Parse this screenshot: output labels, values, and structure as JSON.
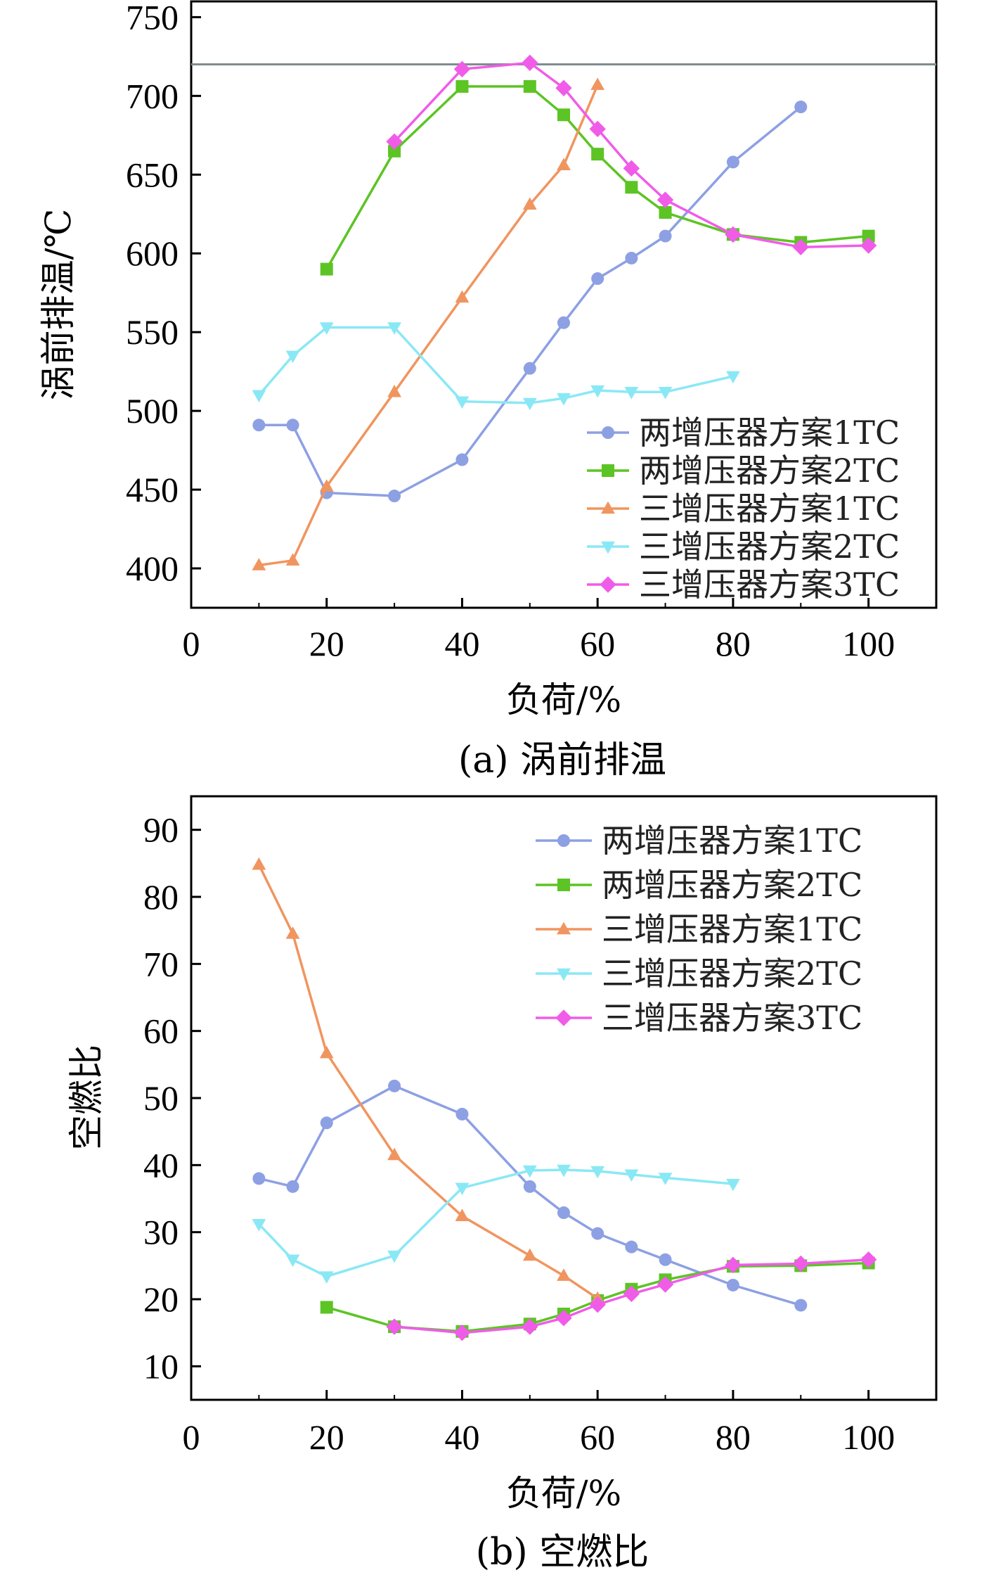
{
  "chart_data": [
    {
      "type": "line",
      "caption": "(a) 涡前排温",
      "title": "",
      "xlabel": "负荷/%",
      "ylabel": "涡前排温/℃",
      "xlim": [
        0,
        110
      ],
      "ylim": [
        375,
        760
      ],
      "xticks": [
        0,
        20,
        40,
        60,
        80,
        100
      ],
      "yticks": [
        400,
        450,
        500,
        550,
        600,
        650,
        700,
        750
      ],
      "reference_line": {
        "y": 720,
        "color": "#7f8c8d"
      },
      "legend_position": "bottom-right",
      "series": [
        {
          "name": "两增压器方案1TC",
          "marker": "circle",
          "color": "#8da0e3",
          "x": [
            10,
            15,
            20,
            30,
            40,
            50,
            55,
            60,
            65,
            70,
            80,
            90
          ],
          "y": [
            491,
            491,
            448,
            446,
            469,
            527,
            556,
            584,
            597,
            611,
            658,
            693
          ]
        },
        {
          "name": "两增压器方案2TC",
          "marker": "square",
          "color": "#5cc424",
          "x": [
            20,
            30,
            40,
            50,
            55,
            60,
            65,
            70,
            80,
            90,
            100
          ],
          "y": [
            590,
            665,
            706,
            706,
            688,
            663,
            642,
            626,
            612,
            607,
            611
          ]
        },
        {
          "name": "三增压器方案1TC",
          "marker": "triangle-up",
          "color": "#f0955f",
          "x": [
            10,
            15,
            20,
            30,
            40,
            50,
            55,
            60
          ],
          "y": [
            402,
            405,
            452,
            512,
            572,
            631,
            656,
            707
          ]
        },
        {
          "name": "三增压器方案2TC",
          "marker": "triangle-down",
          "color": "#8ae8f5",
          "x": [
            10,
            15,
            20,
            30,
            40,
            50,
            55,
            60,
            65,
            70,
            80
          ],
          "y": [
            510,
            535,
            553,
            553,
            506,
            505,
            508,
            513,
            512,
            512,
            522
          ]
        },
        {
          "name": "三增压器方案3TC",
          "marker": "diamond",
          "color": "#f05ce8",
          "x": [
            30,
            40,
            50,
            55,
            60,
            65,
            70,
            80,
            90,
            100
          ],
          "y": [
            671,
            717,
            721,
            705,
            679,
            654,
            634,
            612,
            604,
            605
          ]
        }
      ]
    },
    {
      "type": "line",
      "caption": "(b) 空燃比",
      "title": "",
      "xlabel": "负荷/%",
      "ylabel": "空燃比",
      "xlim": [
        0,
        110
      ],
      "ylim": [
        5,
        95
      ],
      "xticks": [
        0,
        20,
        40,
        60,
        80,
        100
      ],
      "yticks": [
        10,
        20,
        30,
        40,
        50,
        60,
        70,
        80,
        90
      ],
      "legend_position": "top-right",
      "series": [
        {
          "name": "两增压器方案1TC",
          "marker": "circle",
          "color": "#8da0e3",
          "x": [
            10,
            15,
            20,
            30,
            40,
            50,
            55,
            60,
            65,
            70,
            80,
            90
          ],
          "y": [
            38,
            36.8,
            46.3,
            51.8,
            47.6,
            36.8,
            32.9,
            29.8,
            27.8,
            25.9,
            22.1,
            19.1
          ]
        },
        {
          "name": "两增压器方案2TC",
          "marker": "square",
          "color": "#5cc424",
          "x": [
            20,
            30,
            40,
            50,
            55,
            60,
            65,
            70,
            80,
            90,
            100
          ],
          "y": [
            18.8,
            15.9,
            15.2,
            16.3,
            17.8,
            19.8,
            21.5,
            22.9,
            24.9,
            25,
            25.4
          ]
        },
        {
          "name": "三增压器方案1TC",
          "marker": "triangle-up",
          "color": "#f0955f",
          "x": [
            10,
            15,
            20,
            30,
            40,
            50,
            55,
            60
          ],
          "y": [
            84.8,
            74.5,
            56.7,
            41.5,
            32.4,
            26.5,
            23.5,
            20.1
          ]
        },
        {
          "name": "三增压器方案2TC",
          "marker": "triangle-down",
          "color": "#8ae8f5",
          "x": [
            10,
            15,
            20,
            30,
            40,
            50,
            55,
            60,
            65,
            70,
            80
          ],
          "y": [
            31.2,
            25.9,
            23.4,
            26.5,
            36.6,
            39.2,
            39.3,
            39.1,
            38.6,
            38.1,
            37.2
          ]
        },
        {
          "name": "三增压器方案3TC",
          "marker": "diamond",
          "color": "#f05ce8",
          "x": [
            30,
            40,
            50,
            55,
            60,
            65,
            70,
            80,
            90,
            100
          ],
          "y": [
            15.9,
            15,
            15.9,
            17.2,
            19.2,
            20.8,
            22.2,
            25.1,
            25.3,
            25.9
          ]
        }
      ]
    }
  ]
}
